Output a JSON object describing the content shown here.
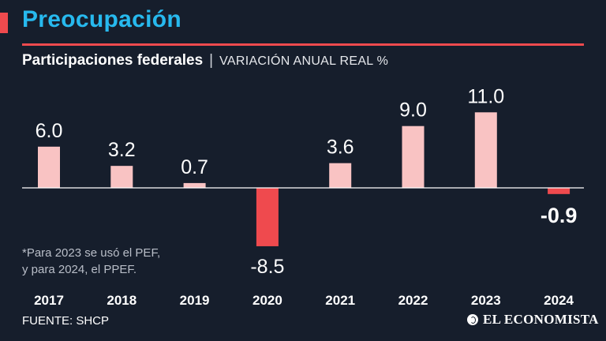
{
  "header": {
    "title": "Preocupación",
    "subtitle_main": "Participaciones federales",
    "subtitle_separator": "|",
    "subtitle_unit": "VARIACIÓN ANUAL REAL %"
  },
  "footnote": {
    "line1": "*Para 2023 se usó el PEF,",
    "line2": "y para 2024, el PPEF."
  },
  "source": "FUENTE: SHCP",
  "brand": {
    "icon": "brand-logo-icon",
    "name": "EL ECONOMISTA"
  },
  "colors": {
    "background": "#161e2c",
    "title": "#27b9ee",
    "accent": "#ef4a4e",
    "positive_bar": "#f9c3c3",
    "negative_bar": "#ef4a4e",
    "text": "#ffffff"
  },
  "chart_data": {
    "type": "bar",
    "title": "Participaciones federales",
    "ylabel": "VARIACIÓN ANUAL REAL %",
    "xlabel": "",
    "categories": [
      "2017",
      "2018",
      "2019",
      "2020",
      "2021",
      "2022",
      "2023",
      "2024"
    ],
    "values": [
      6.0,
      3.2,
      0.7,
      -8.5,
      3.6,
      9.0,
      11.0,
      -0.9
    ],
    "value_labels": [
      "6.0",
      "3.2",
      "0.7",
      "-8.5",
      "3.6",
      "9.0",
      "11.0",
      "-0.9"
    ],
    "ylim": [
      -8.5,
      11.0
    ],
    "grid": false,
    "legend": "none"
  }
}
